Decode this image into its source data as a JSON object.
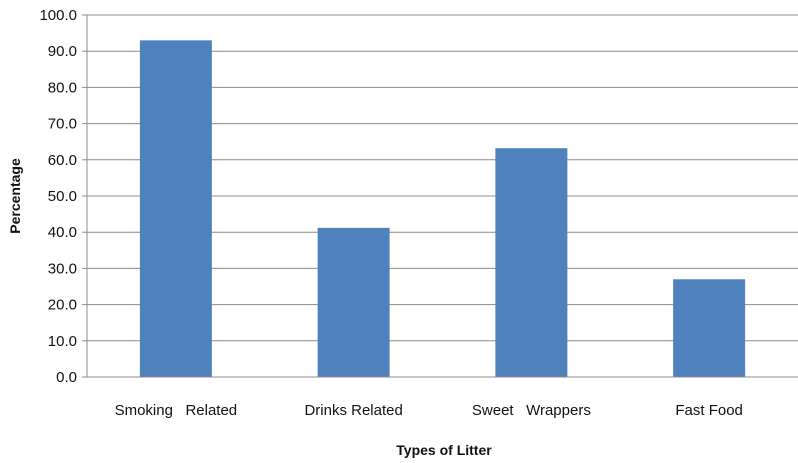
{
  "chart_data": {
    "type": "bar",
    "title": "",
    "xlabel": "Types of Litter",
    "ylabel": "Percentage",
    "categories": [
      "Smoking   Related",
      "Drinks Related",
      "Sweet   Wrappers",
      "Fast Food"
    ],
    "values": [
      93.0,
      41.2,
      63.2,
      27.0
    ],
    "ylim": [
      0,
      100
    ],
    "yticks": [
      "0.0",
      "10.0",
      "20.0",
      "30.0",
      "40.0",
      "50.0",
      "60.0",
      "70.0",
      "80.0",
      "90.0",
      "100.0"
    ],
    "grid": true,
    "legend": "none",
    "colors": {
      "bar": "#4f81bd",
      "grid": "#8c8c8c",
      "axis": "#8c8c8c"
    }
  }
}
